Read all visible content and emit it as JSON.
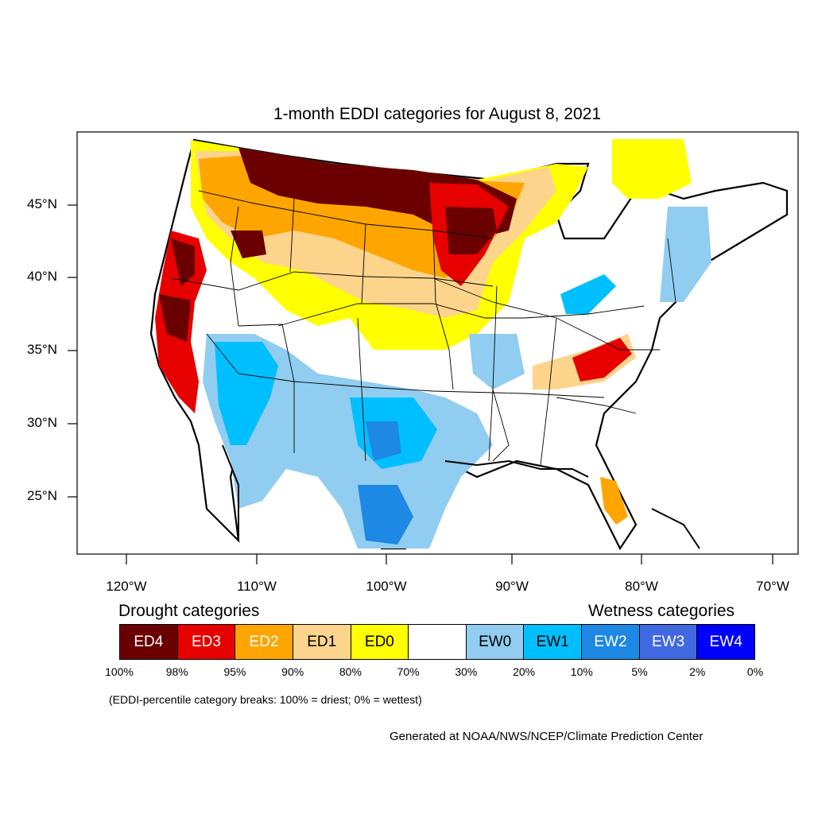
{
  "title": "1-month EDDI categories for August 8, 2021",
  "lat_labels": [
    "45°N",
    "40°N",
    "35°N",
    "30°N",
    "25°N"
  ],
  "lon_labels": [
    "120°W",
    "110°W",
    "100°W",
    "90°W",
    "80°W",
    "70°W"
  ],
  "legend": {
    "drought_heading": "Drought categories",
    "wetness_heading": "Wetness categories",
    "categories": [
      {
        "label": "ED4",
        "color": "#6b0000",
        "text_color": "#ffffff"
      },
      {
        "label": "ED3",
        "color": "#e60000",
        "text_color": "#ffffff"
      },
      {
        "label": "ED2",
        "color": "#ffa500",
        "text_color": "#ffffff"
      },
      {
        "label": "ED1",
        "color": "#fcd48c",
        "text_color": "#000000"
      },
      {
        "label": "ED0",
        "color": "#ffff00",
        "text_color": "#000000"
      },
      {
        "label": "",
        "color": "#ffffff",
        "text_color": "#000000"
      },
      {
        "label": "EW0",
        "color": "#90cdf0",
        "text_color": "#000000"
      },
      {
        "label": "EW1",
        "color": "#00bfff",
        "text_color": "#000000"
      },
      {
        "label": "EW2",
        "color": "#1e88e5",
        "text_color": "#ffffff"
      },
      {
        "label": "EW3",
        "color": "#4169e1",
        "text_color": "#ffffff"
      },
      {
        "label": "EW4",
        "color": "#0000ff",
        "text_color": "#ffffff"
      }
    ],
    "percent_labels": [
      "100%",
      "98%",
      "95%",
      "90%",
      "80%",
      "70%",
      "30%",
      "20%",
      "10%",
      "5%",
      "2%",
      "0%"
    ]
  },
  "breaks_note": "(EDDI-percentile category breaks: 100% = driest; 0% = wettest)",
  "credit": "Generated at NOAA/NWS/NCEP/Climate Prediction Center"
}
